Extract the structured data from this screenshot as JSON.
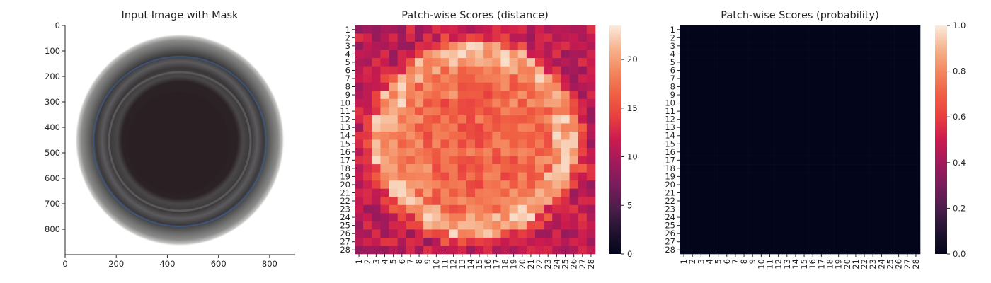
{
  "chart_data": [
    {
      "type": "image",
      "title": "Input Image with Mask",
      "xlim": [
        0,
        900
      ],
      "ylim": [
        900,
        0
      ],
      "xticks": [
        0,
        200,
        400,
        600,
        800
      ],
      "yticks": [
        0,
        100,
        200,
        300,
        400,
        500,
        600,
        700,
        800
      ]
    },
    {
      "type": "heatmap",
      "title": "Patch-wise Scores (distance)",
      "rows": 28,
      "cols": 28,
      "xticks": [
        "1",
        "2",
        "3",
        "4",
        "5",
        "6",
        "7",
        "8",
        "9",
        "10",
        "11",
        "12",
        "13",
        "14",
        "15",
        "16",
        "17",
        "18",
        "19",
        "20",
        "21",
        "22",
        "23",
        "24",
        "25",
        "26",
        "27",
        "28"
      ],
      "yticks": [
        "1",
        "2",
        "3",
        "4",
        "5",
        "6",
        "7",
        "8",
        "9",
        "10",
        "11",
        "12",
        "13",
        "14",
        "15",
        "16",
        "17",
        "18",
        "19",
        "20",
        "21",
        "22",
        "23",
        "24",
        "25",
        "26",
        "27",
        "28"
      ],
      "vmin": 0,
      "vmax": 23.5,
      "colorbar_ticks": [
        0,
        5,
        10,
        15,
        20
      ],
      "colormap": "rocket"
    },
    {
      "type": "heatmap",
      "title": "Patch-wise Scores (probability)",
      "rows": 28,
      "cols": 28,
      "xticks": [
        "1",
        "2",
        "3",
        "4",
        "5",
        "6",
        "7",
        "8",
        "9",
        "10",
        "11",
        "12",
        "13",
        "14",
        "15",
        "16",
        "17",
        "18",
        "19",
        "20",
        "21",
        "22",
        "23",
        "24",
        "25",
        "26",
        "27",
        "28"
      ],
      "yticks": [
        "1",
        "2",
        "3",
        "4",
        "5",
        "6",
        "7",
        "8",
        "9",
        "10",
        "11",
        "12",
        "13",
        "14",
        "15",
        "16",
        "17",
        "18",
        "19",
        "20",
        "21",
        "22",
        "23",
        "24",
        "25",
        "26",
        "27",
        "28"
      ],
      "vmin": 0.0,
      "vmax": 1.0,
      "colorbar_ticks": [
        "0.0",
        "0.2",
        "0.4",
        "0.6",
        "0.8",
        "1.0"
      ],
      "fill_value": 0.0,
      "colormap": "rocket"
    }
  ]
}
